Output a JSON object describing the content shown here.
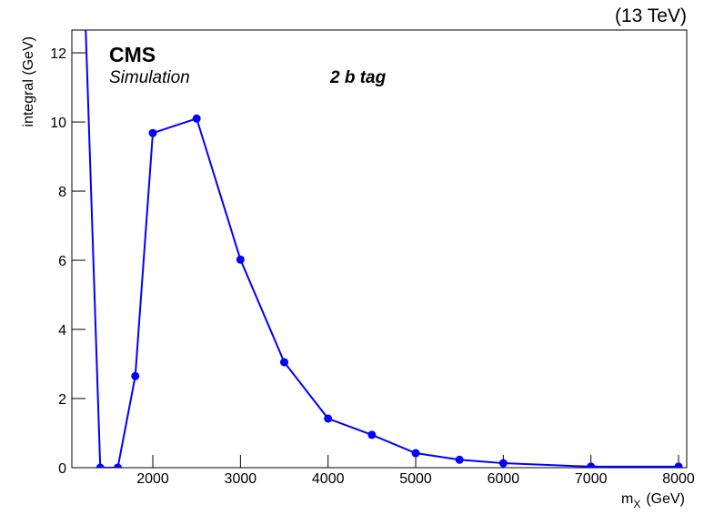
{
  "chart_data": {
    "type": "line",
    "title": "(13 TeV)",
    "annotations": [
      "CMS",
      "Simulation",
      "2 b tag"
    ],
    "y_label": "integral (GeV)",
    "x_label": {
      "main": "m",
      "sub": "X",
      "unit": "(GeV)"
    },
    "x": [
      1200,
      1400,
      1600,
      1800,
      2000,
      2500,
      3000,
      3500,
      4000,
      4500,
      5000,
      5500,
      6000,
      7000,
      8000
    ],
    "series": [
      {
        "name": "integral",
        "color": "#0000ff",
        "values": [
          15.3,
          0,
          0,
          2.65,
          9.68,
          10.1,
          6.02,
          3.05,
          1.42,
          0.95,
          0.42,
          0.23,
          0.13,
          0.03,
          0.03
        ]
      }
    ],
    "xlim": [
      1076,
      8093
    ],
    "ylim": [
      0,
      12.66
    ],
    "xticks": [
      2000,
      3000,
      4000,
      5000,
      6000,
      7000,
      8000
    ],
    "yticks": [
      0,
      2,
      4,
      6,
      8,
      10,
      12
    ]
  }
}
